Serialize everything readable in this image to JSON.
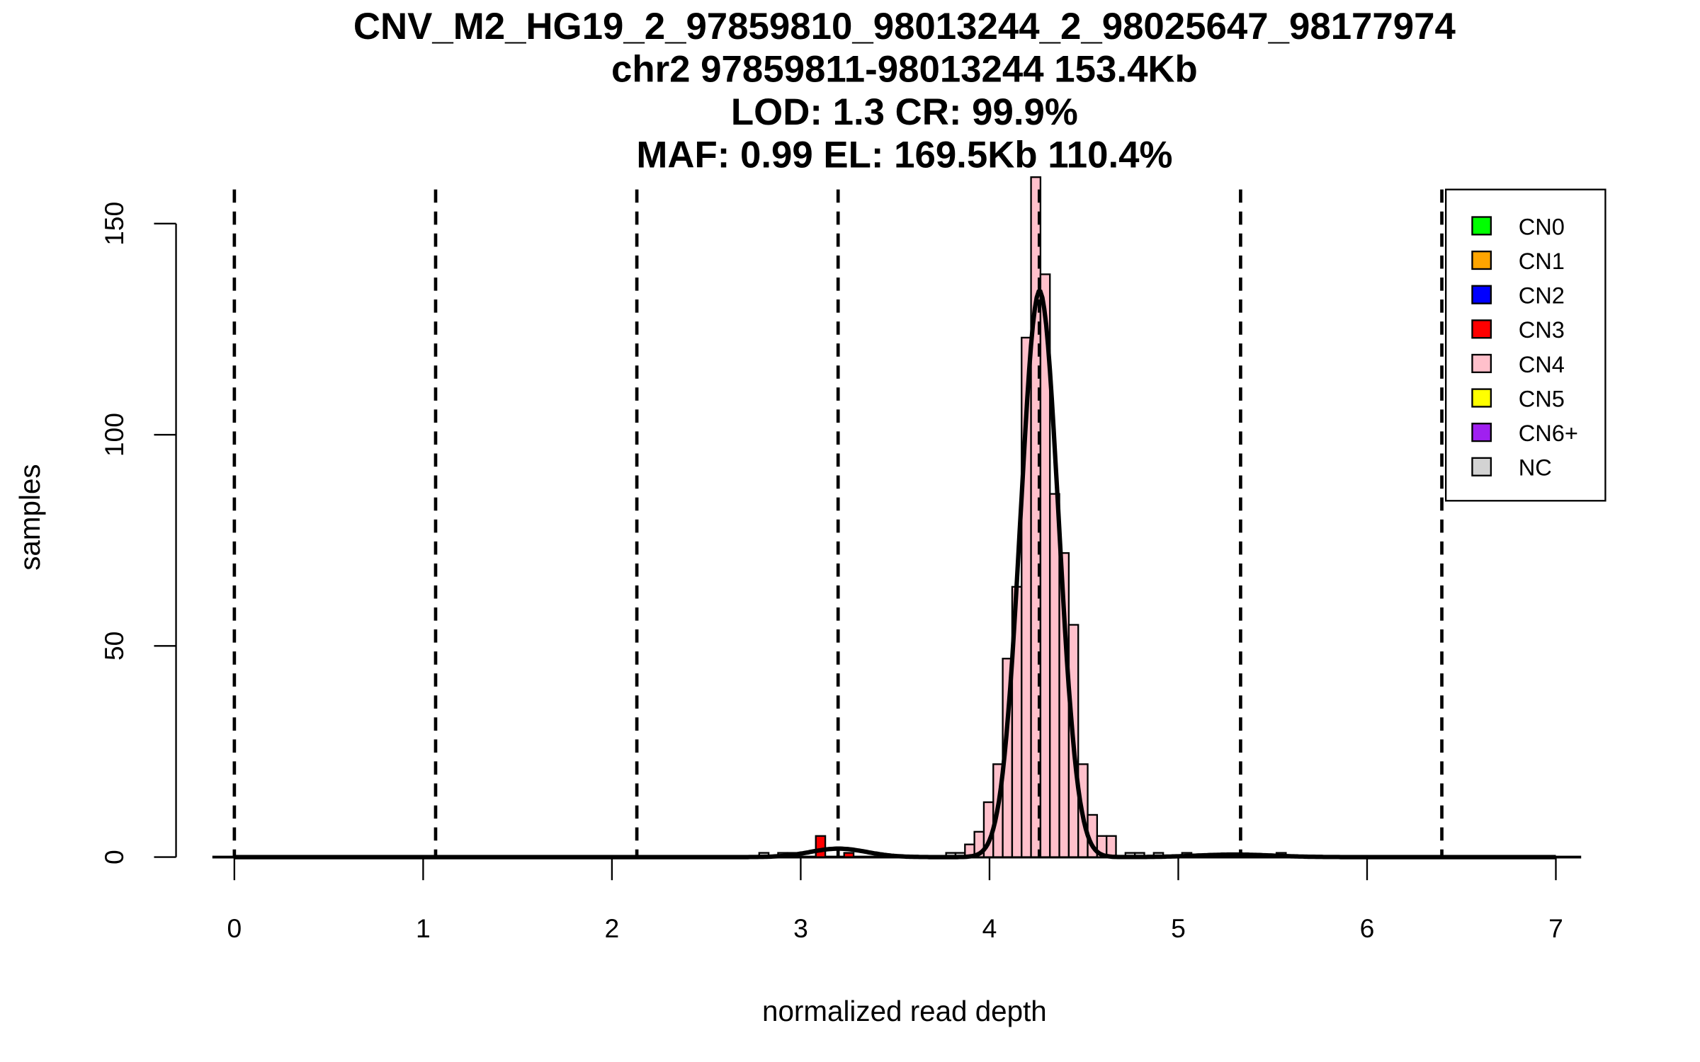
{
  "chart_data": {
    "type": "bar",
    "title_lines": [
      "CNV_M2_HG19_2_97859810_98013244_2_98025647_98177974",
      "chr2 97859811-98013244 153.4Kb",
      "LOD: 1.3 CR: 99.9%",
      "MAF: 0.99 EL: 169.5Kb 110.4%"
    ],
    "xlabel": "normalized read depth",
    "ylabel": "samples",
    "xlim": [
      0,
      7
    ],
    "ylim": [
      0,
      150
    ],
    "xticks": [
      "0",
      "1",
      "2",
      "3",
      "4",
      "5",
      "6",
      "7"
    ],
    "yticks": [
      "0",
      "50",
      "100",
      "150"
    ],
    "grid": false,
    "legend_position": "top-right",
    "legend": [
      {
        "label": "CN0",
        "color": "#00ff00"
      },
      {
        "label": "CN1",
        "color": "#ffa500"
      },
      {
        "label": "CN2",
        "color": "#0000ff"
      },
      {
        "label": "CN3",
        "color": "#ff0000"
      },
      {
        "label": "CN4",
        "color": "#ffc0cb"
      },
      {
        "label": "CN5",
        "color": "#ffff00"
      },
      {
        "label": "CN6+",
        "color": "#a020f0"
      },
      {
        "label": "NC",
        "color": "#d3d3d3"
      }
    ],
    "bin_width": 0.05,
    "bars": [
      {
        "x0": 2.78,
        "count": 1,
        "class": "NC"
      },
      {
        "x0": 2.88,
        "count": 1,
        "class": "NC"
      },
      {
        "x0": 2.93,
        "count": 1,
        "class": "NC"
      },
      {
        "x0": 3.08,
        "count": 5,
        "class": "CN3"
      },
      {
        "x0": 3.23,
        "count": 1,
        "class": "CN3"
      },
      {
        "x0": 3.77,
        "count": 1,
        "class": "NC"
      },
      {
        "x0": 3.82,
        "count": 1,
        "class": "NC"
      },
      {
        "x0": 3.87,
        "count": 3,
        "class": "CN4"
      },
      {
        "x0": 3.92,
        "count": 6,
        "class": "CN4"
      },
      {
        "x0": 3.97,
        "count": 13,
        "class": "CN4"
      },
      {
        "x0": 4.02,
        "count": 22,
        "class": "CN4"
      },
      {
        "x0": 4.07,
        "count": 47,
        "class": "CN4"
      },
      {
        "x0": 4.12,
        "count": 64,
        "class": "CN4"
      },
      {
        "x0": 4.17,
        "count": 123,
        "class": "CN4"
      },
      {
        "x0": 4.22,
        "count": 161,
        "class": "CN4"
      },
      {
        "x0": 4.27,
        "count": 138,
        "class": "CN4"
      },
      {
        "x0": 4.32,
        "count": 86,
        "class": "CN4"
      },
      {
        "x0": 4.37,
        "count": 72,
        "class": "CN4"
      },
      {
        "x0": 4.42,
        "count": 55,
        "class": "CN4"
      },
      {
        "x0": 4.47,
        "count": 22,
        "class": "CN4"
      },
      {
        "x0": 4.52,
        "count": 10,
        "class": "CN4"
      },
      {
        "x0": 4.57,
        "count": 5,
        "class": "CN4"
      },
      {
        "x0": 4.62,
        "count": 5,
        "class": "CN4"
      },
      {
        "x0": 4.72,
        "count": 1,
        "class": "NC"
      },
      {
        "x0": 4.77,
        "count": 1,
        "class": "NC"
      },
      {
        "x0": 4.87,
        "count": 1,
        "class": "NC"
      },
      {
        "x0": 5.02,
        "count": 1,
        "class": "NC"
      },
      {
        "x0": 5.52,
        "count": 1,
        "class": "NC"
      }
    ],
    "cn_boundaries": [
      0,
      1.066,
      2.132,
      3.198,
      4.264,
      5.33,
      6.396
    ],
    "density_components": [
      {
        "mean": 3.2,
        "sd": 0.15,
        "peak": 2
      },
      {
        "mean": 4.265,
        "sd": 0.1,
        "peak": 134
      },
      {
        "mean": 5.3,
        "sd": 0.2,
        "peak": 0.6
      }
    ]
  }
}
